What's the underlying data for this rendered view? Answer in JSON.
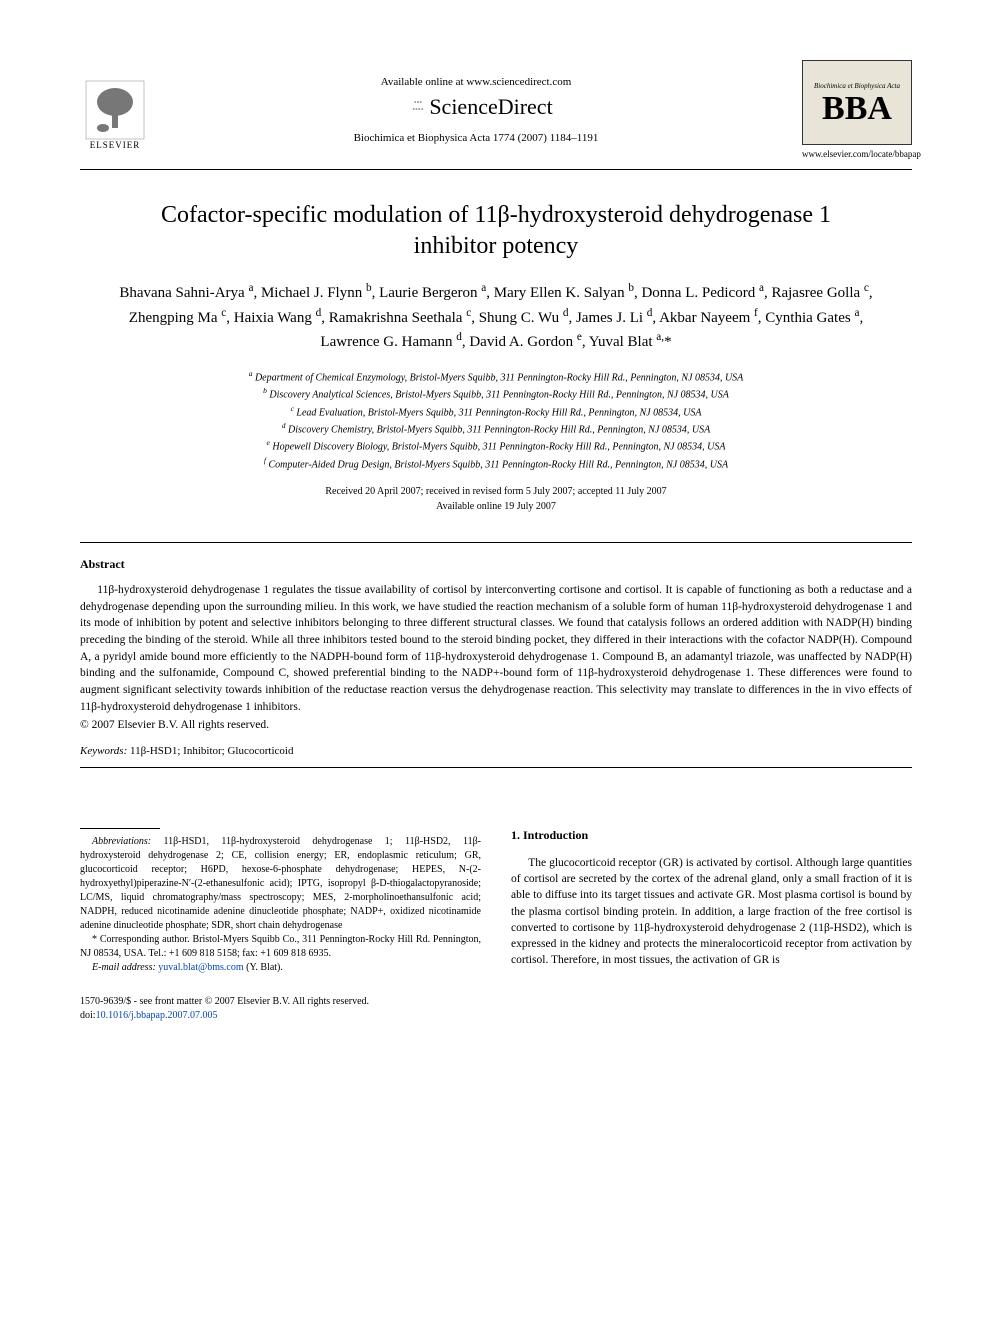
{
  "header": {
    "elsevier_label": "ELSEVIER",
    "available_text": "Available online at www.sciencedirect.com",
    "sd_name": "ScienceDirect",
    "journal_ref": "Biochimica et Biophysica Acta 1774 (2007) 1184–1191",
    "bba_top": "Biochimica et Biophysica Acta",
    "bba_big": "BBA",
    "bba_url": "www.elsevier.com/locate/bbapap"
  },
  "title": "Cofactor-specific modulation of 11β-hydroxysteroid dehydrogenase 1 inhibitor potency",
  "authors_html": "Bhavana Sahni-Arya <sup>a</sup>, Michael J. Flynn <sup>b</sup>, Laurie Bergeron <sup>a</sup>, Mary Ellen K. Salyan <sup>b</sup>, Donna L. Pedicord <sup>a</sup>, Rajasree Golla <sup>c</sup>, Zhengping Ma <sup>c</sup>, Haixia Wang <sup>d</sup>, Ramakrishna Seethala <sup>c</sup>, Shung C. Wu <sup>d</sup>, James J. Li <sup>d</sup>, Akbar Nayeem <sup>f</sup>, Cynthia Gates <sup>a</sup>, Lawrence G. Hamann <sup>d</sup>, David A. Gordon <sup>e</sup>, Yuval Blat <sup>a,</sup>*",
  "affiliations": [
    "a Department of Chemical Enzymology, Bristol-Myers Squibb, 311 Pennington-Rocky Hill Rd., Pennington, NJ 08534, USA",
    "b Discovery Analytical Sciences, Bristol-Myers Squibb, 311 Pennington-Rocky Hill Rd., Pennington, NJ 08534, USA",
    "c Lead Evaluation, Bristol-Myers Squibb, 311 Pennington-Rocky Hill Rd., Pennington, NJ 08534, USA",
    "d Discovery Chemistry, Bristol-Myers Squibb, 311 Pennington-Rocky Hill Rd., Pennington, NJ 08534, USA",
    "e Hopewell Discovery Biology, Bristol-Myers Squibb, 311 Pennington-Rocky Hill Rd., Pennington, NJ 08534, USA",
    "f Computer-Aided Drug Design, Bristol-Myers Squibb, 311 Pennington-Rocky Hill Rd., Pennington, NJ 08534, USA"
  ],
  "dates": {
    "received": "Received 20 April 2007; received in revised form 5 July 2007; accepted 11 July 2007",
    "online": "Available online 19 July 2007"
  },
  "abstract": {
    "heading": "Abstract",
    "body": "11β-hydroxysteroid dehydrogenase 1 regulates the tissue availability of cortisol by interconverting cortisone and cortisol. It is capable of functioning as both a reductase and a dehydrogenase depending upon the surrounding milieu. In this work, we have studied the reaction mechanism of a soluble form of human 11β-hydroxysteroid dehydrogenase 1 and its mode of inhibition by potent and selective inhibitors belonging to three different structural classes. We found that catalysis follows an ordered addition with NADP(H) binding preceding the binding of the steroid. While all three inhibitors tested bound to the steroid binding pocket, they differed in their interactions with the cofactor NADP(H). Compound A, a pyridyl amide bound more efficiently to the NADPH-bound form of 11β-hydroxysteroid dehydrogenase 1. Compound B, an adamantyl triazole, was unaffected by NADP(H) binding and the sulfonamide, Compound C, showed preferential binding to the NADP+-bound form of 11β-hydroxysteroid dehydrogenase 1. These differences were found to augment significant selectivity towards inhibition of the reductase reaction versus the dehydrogenase reaction. This selectivity may translate to differences in the in vivo effects of 11β-hydroxysteroid dehydrogenase 1 inhibitors.",
    "copyright": "© 2007 Elsevier B.V. All rights reserved."
  },
  "keywords": {
    "label": "Keywords:",
    "values": "11β-HSD1; Inhibitor; Glucocorticoid"
  },
  "footnotes": {
    "abbreviations_label": "Abbreviations:",
    "abbreviations": "11β-HSD1, 11β-hydroxysteroid dehydrogenase 1; 11β-HSD2, 11β-hydroxysteroid dehydrogenase 2; CE, collision energy; ER, endoplasmic reticulum; GR, glucocorticoid receptor; H6PD, hexose-6-phosphate dehydrogenase; HEPES, N-(2-hydroxyethyl)piperazine-N′-(2-ethanesulfonic acid); IPTG, isopropyl β-D-thiogalactopyranoside; LC/MS, liquid chromatography/mass spectroscopy; MES, 2-morpholinoethansulfonic acid; NADPH, reduced nicotinamide adenine dinucleotide phosphate; NADP+, oxidized nicotinamide adenine dinucleotide phosphate; SDR, short chain dehydrogenase",
    "corresponding": "* Corresponding author. Bristol-Myers Squibb Co., 311 Pennington-Rocky Hill Rd. Pennington, NJ 08534, USA. Tel.: +1 609 818 5158; fax: +1 609 818 6935.",
    "email_label": "E-mail address:",
    "email": "yuval.blat@bms.com",
    "email_author": "(Y. Blat)."
  },
  "intro": {
    "heading": "1. Introduction",
    "body": "The glucocorticoid receptor (GR) is activated by cortisol. Although large quantities of cortisol are secreted by the cortex of the adrenal gland, only a small fraction of it is able to diffuse into its target tissues and activate GR. Most plasma cortisol is bound by the plasma cortisol binding protein. In addition, a large fraction of the free cortisol is converted to cortisone by 11β-hydroxysteroid dehydrogenase 2 (11β-HSD2), which is expressed in the kidney and protects the mineralocorticoid receptor from activation by cortisol. Therefore, in most tissues, the activation of GR is"
  },
  "footer": {
    "issn": "1570-9639/$ - see front matter © 2007 Elsevier B.V. All rights reserved.",
    "doi_label": "doi:",
    "doi": "10.1016/j.bbapap.2007.07.005"
  },
  "colors": {
    "text": "#000000",
    "link": "#0645ad",
    "bba_bg": "#e8e4d8",
    "rule": "#000000"
  },
  "typography": {
    "body_family": "Times New Roman",
    "title_size_pt": 18,
    "author_size_pt": 12,
    "body_size_pt": 9,
    "footnote_size_pt": 8
  }
}
